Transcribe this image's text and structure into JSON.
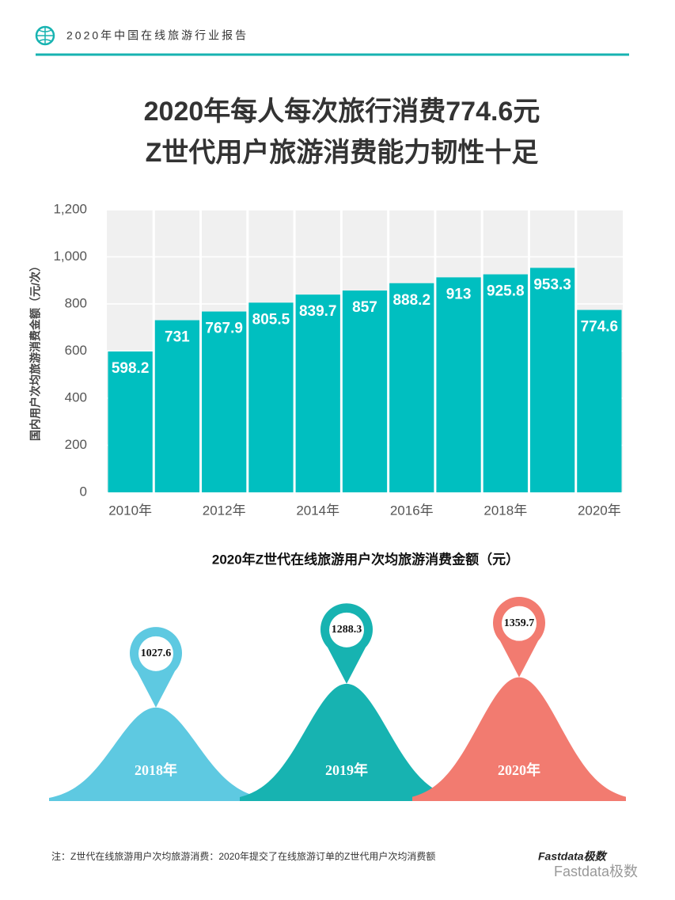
{
  "header": {
    "title": "2020年中国在线旅游行业报告"
  },
  "headline": [
    "2020年每人每次旅行消费774.6元",
    "Z世代用户旅游消费能力韧性十足"
  ],
  "chart_data": [
    {
      "type": "bar",
      "ylabel": "国内用户次均旅游消费金额（元/次）",
      "categories": [
        "2010年",
        null,
        "2012年",
        null,
        "2014年",
        null,
        "2016年",
        null,
        "2018年",
        null,
        "2020年"
      ],
      "values": [
        598.2,
        731,
        767.9,
        805.5,
        839.7,
        857,
        888.2,
        913,
        925.8,
        953.3,
        774.6
      ],
      "color": "#00bfc0",
      "ylim": [
        0,
        1200
      ],
      "yticks": [
        0,
        200,
        400,
        600,
        800,
        {
          "value": 1000,
          "label": "1,000"
        },
        {
          "value": 1200,
          "label": "1,200"
        }
      ]
    },
    {
      "type": "bell",
      "title": "2020年Z世代在线旅游用户次均旅游消费金额（元）",
      "categories": [
        "2018年",
        "2019年",
        "2020年"
      ],
      "values": [
        1027.6,
        1288.3,
        1359.7
      ],
      "colors": [
        "#5ec9e1",
        "#17b3b1",
        "#f27b70"
      ]
    }
  ],
  "footer": {
    "note": "注：Z世代在线旅游用户次均旅游消费：2020年提交了在线旅游订单的Z世代用户次均消费额",
    "logo": "Fastdata极数",
    "watermark": "Fastdata极数"
  }
}
